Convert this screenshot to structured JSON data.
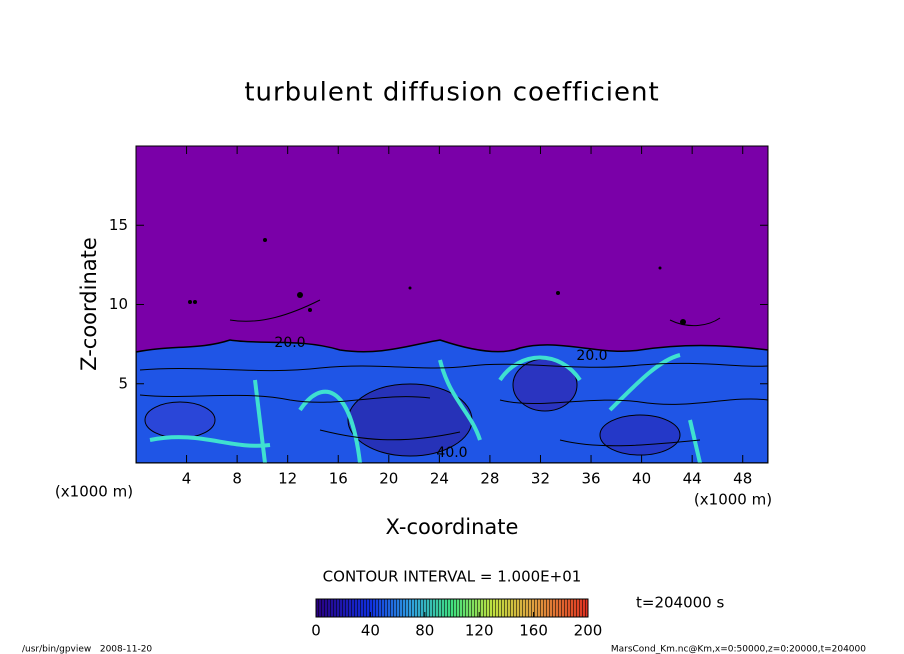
{
  "chart_data": {
    "type": "contour",
    "title": "turbulent diffusion coefficient",
    "x_label": "X-coordinate",
    "y_label": "Z-coordinate",
    "x_unit": "(x1000 m)",
    "y_unit": "(x1000 m)",
    "xlim": [
      0,
      50
    ],
    "xticks": [
      4,
      8,
      12,
      16,
      20,
      24,
      28,
      32,
      36,
      40,
      44,
      48
    ],
    "ylim": [
      0,
      20
    ],
    "yticks": [
      5,
      10,
      15
    ],
    "contour_labels": [
      "20.0",
      "20.0",
      "40.0"
    ],
    "contour_interval_label": "CONTOUR INTERVAL = 1.000E+01",
    "colorbar": {
      "lim": [
        0,
        200
      ],
      "ticks": [
        0,
        40,
        80,
        120,
        160,
        200
      ]
    },
    "time_label": "t=204000 s",
    "footer_left": "/usr/bin/gpview   2008-11-20",
    "footer_right": "MarsCond_Km.nc@Km,x=0:50000,z=0:20000,t=204000"
  }
}
